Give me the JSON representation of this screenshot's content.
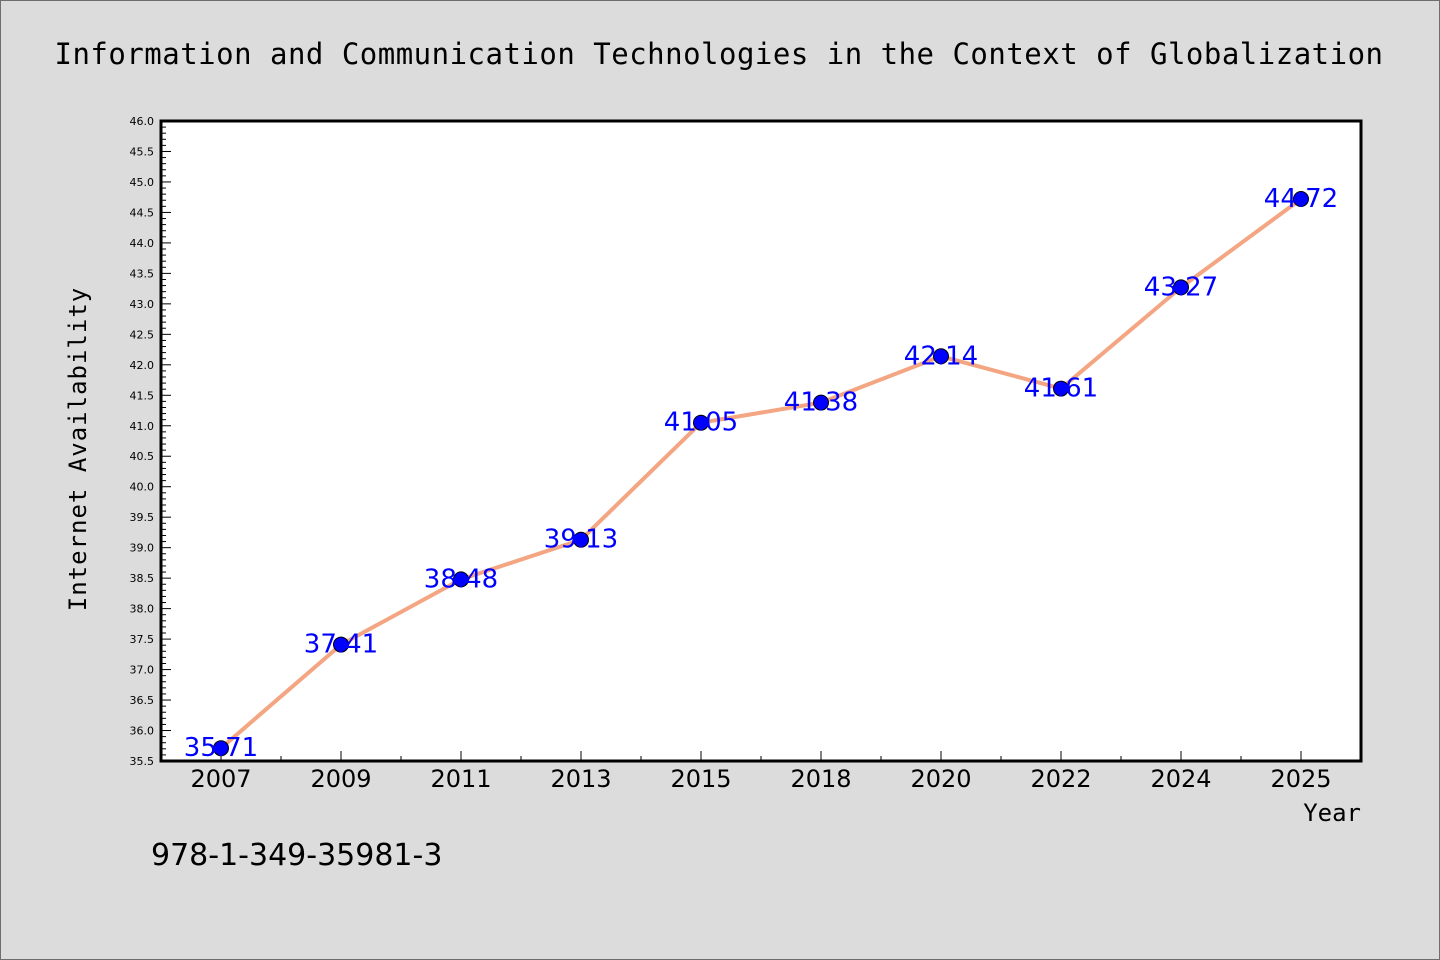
{
  "chart_data": {
    "type": "line",
    "title": "Information and Communication Technologies in the Context of Globalization",
    "xlabel": "Year",
    "ylabel": "Internet Availability",
    "categories": [
      "2007",
      "2009",
      "2011",
      "2013",
      "2015",
      "2018",
      "2020",
      "2022",
      "2024",
      "2025"
    ],
    "series": [
      {
        "values": [
          35.71,
          37.41,
          38.48,
          39.13,
          41.05,
          41.38,
          42.14,
          41.61,
          43.27,
          44.72
        ]
      }
    ],
    "data_labels": [
      "35.71",
      "37.41",
      "38.48",
      "39.13",
      "41.05",
      "41.38",
      "42.14",
      "41.61",
      "43.27",
      "44.72"
    ],
    "ylim": [
      35.5,
      46.0
    ],
    "yticks": [
      "35.5",
      "36.0",
      "36.5",
      "37.0",
      "37.5",
      "38.0",
      "38.5",
      "39.0",
      "39.5",
      "40.0",
      "40.5",
      "41.0",
      "41.5",
      "42.0",
      "42.5",
      "43.0",
      "43.5",
      "44.0",
      "44.5",
      "45.0",
      "45.5",
      "46.0"
    ],
    "grid": false,
    "colors": {
      "line": "#f4a582",
      "marker": "#0000ff",
      "label": "#0000ff",
      "background": "#dcdcdc",
      "plot_area": "#ffffff"
    }
  },
  "footer": {
    "isbn": "978-1-349-35981-3"
  }
}
